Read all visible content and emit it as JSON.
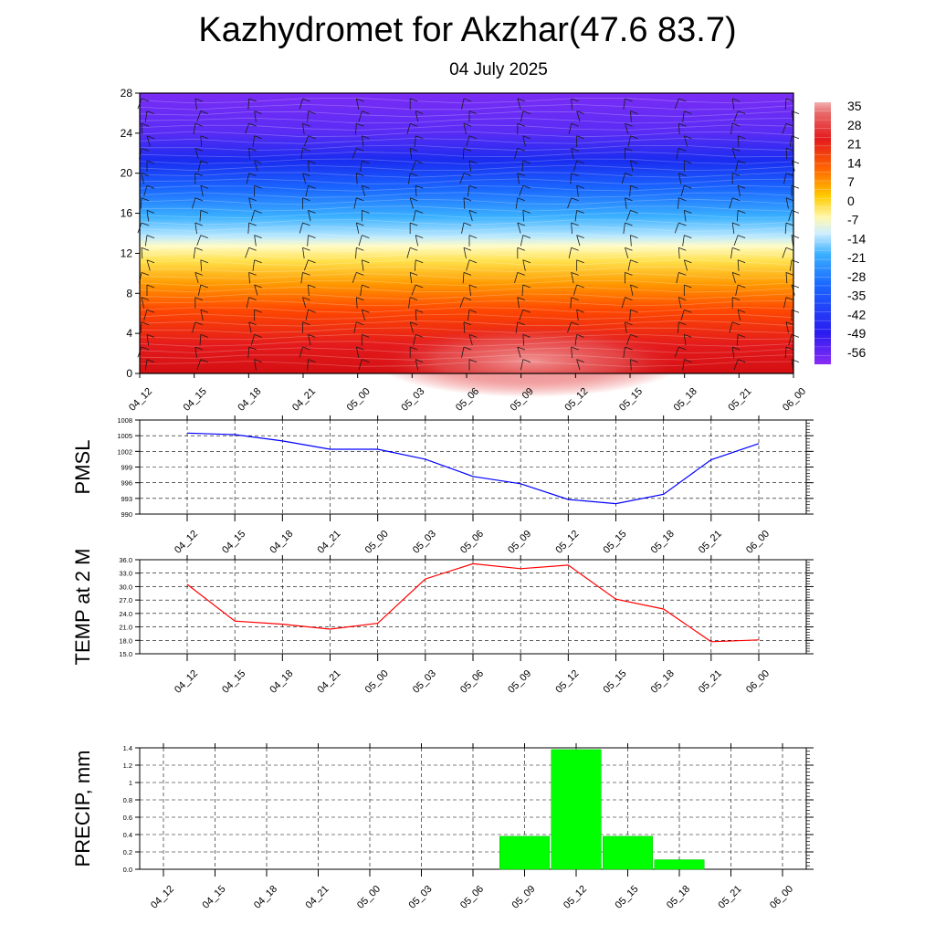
{
  "header": {
    "title": "Kazhydromet for Akzhar(47.6 83.7)",
    "subtitle": "04 July 2025"
  },
  "chart_data": [
    {
      "id": "temp-profile",
      "type": "heatmap",
      "title": "",
      "xlabel": "",
      "ylabel": "",
      "categories": [
        "04_12",
        "04_15",
        "04_18",
        "04_21",
        "05_00",
        "05_03",
        "05_06",
        "05_09",
        "05_12",
        "05_15",
        "05_18",
        "05_21",
        "06_00"
      ],
      "y_ticks": [
        0,
        4,
        8,
        12,
        16,
        20,
        24,
        28
      ],
      "ylim": [
        0,
        28
      ],
      "colorbar_labels": [
        "35",
        "28",
        "21",
        "14",
        "7",
        "0",
        "-7",
        "-14",
        "-21",
        "-28",
        "-35",
        "-42",
        "-49",
        "-56"
      ],
      "colorbar_range": [
        -63,
        42
      ],
      "overlay": "wind barbs",
      "grid": false
    },
    {
      "id": "pmsl",
      "type": "line",
      "ylabel": "PMSL",
      "categories": [
        "04_12",
        "04_15",
        "04_18",
        "04_21",
        "05_00",
        "05_03",
        "05_06",
        "05_09",
        "05_12",
        "05_15",
        "05_18",
        "05_21",
        "06_00"
      ],
      "values": [
        1005.5,
        1005.2,
        1004.0,
        1002.4,
        1002.4,
        1000.5,
        997.2,
        995.8,
        992.8,
        992.0,
        993.8,
        1000.4,
        1003.5
      ],
      "ylim": [
        990,
        1008
      ],
      "y_ticks": [
        "990",
        "993",
        "996",
        "999",
        "1002",
        "1005",
        "1008"
      ],
      "color": "#0000ff",
      "grid": true
    },
    {
      "id": "temp2m",
      "type": "line",
      "ylabel": "TEMP at 2 M",
      "categories": [
        "04_12",
        "04_15",
        "04_18",
        "04_21",
        "05_00",
        "05_03",
        "05_06",
        "05_09",
        "05_12",
        "05_15",
        "05_18",
        "05_21",
        "06_00"
      ],
      "values": [
        30.5,
        22.3,
        21.6,
        20.5,
        21.8,
        31.7,
        35.1,
        34.0,
        34.8,
        27.2,
        25.0,
        17.7,
        18.1
      ],
      "ylim": [
        15,
        36
      ],
      "y_ticks": [
        "15.0",
        "18.0",
        "21.0",
        "24.0",
        "27.0",
        "30.0",
        "33.0",
        "36.0"
      ],
      "color": "#ff0000",
      "grid": true
    },
    {
      "id": "precip",
      "type": "bar",
      "ylabel": "PRECIP, mm",
      "categories": [
        "04_12",
        "04_15",
        "04_18",
        "04_21",
        "05_00",
        "05_03",
        "05_06",
        "05_09",
        "05_12",
        "05_15",
        "05_18",
        "05_21",
        "06_00"
      ],
      "values": [
        0,
        0,
        0,
        0,
        0,
        0,
        0,
        0.38,
        1.38,
        0.38,
        0.11,
        0,
        0
      ],
      "ylim": [
        0,
        1.4
      ],
      "y_ticks": [
        "0.0",
        "0.2",
        "0.4",
        "0.6",
        "0.8",
        "1",
        "1.2",
        "1.4"
      ],
      "color": "#00ff00",
      "grid": true
    }
  ]
}
